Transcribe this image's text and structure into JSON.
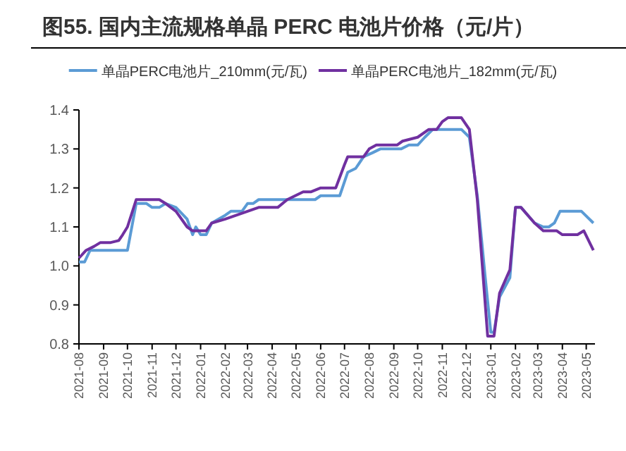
{
  "chart_data": {
    "type": "line",
    "title": "图55. 国内主流规格单晶 PERC 电池片价格（元/片）",
    "legend": "top",
    "xlim": [
      "2021-08-01",
      "2023-05-12"
    ],
    "xticks": [
      "2021-08",
      "2021-09",
      "2021-10",
      "2021-11",
      "2021-12",
      "2022-01",
      "2022-02",
      "2022-03",
      "2022-04",
      "2022-05",
      "2022-06",
      "2022-07",
      "2022-08",
      "2022-09",
      "2022-10",
      "2022-11",
      "2022-12",
      "2023-01",
      "2023-02",
      "2023-03",
      "2023-04",
      "2023-05"
    ],
    "ylim": [
      0.8,
      1.4
    ],
    "yticks": [
      0.8,
      0.9,
      {
        "value": 1.0,
        "label": "1.0"
      },
      1.1,
      1.2,
      1.3,
      1.4
    ],
    "series": [
      {
        "name": "单晶PERC电池片_210mm(元/瓦)",
        "color": "#5b9bd5",
        "x": [
          "2021-08-01",
          "2021-08-08",
          "2021-08-15",
          "2021-10-01",
          "2021-10-12",
          "2021-10-25",
          "2021-11-01",
          "2021-11-10",
          "2021-11-18",
          "2021-12-01",
          "2021-12-15",
          "2021-12-22",
          "2021-12-26",
          "2022-01-01",
          "2022-01-08",
          "2022-01-15",
          "2022-02-01",
          "2022-02-08",
          "2022-02-22",
          "2022-03-01",
          "2022-03-08",
          "2022-03-15",
          "2022-05-25",
          "2022-06-01",
          "2022-06-25",
          "2022-07-05",
          "2022-07-15",
          "2022-07-25",
          "2022-08-05",
          "2022-08-15",
          "2022-09-10",
          "2022-09-20",
          "2022-10-01",
          "2022-10-10",
          "2022-10-20",
          "2022-11-25",
          "2022-12-05",
          "2022-12-15",
          "2022-12-25",
          "2023-01-01",
          "2023-01-05",
          "2023-01-12",
          "2023-01-25",
          "2023-02-01",
          "2023-02-08",
          "2023-02-25",
          "2023-03-08",
          "2023-03-15",
          "2023-03-22",
          "2023-03-29",
          "2023-04-25",
          "2023-05-10"
        ],
        "values": [
          1.01,
          1.01,
          1.04,
          1.04,
          1.16,
          1.16,
          1.15,
          1.15,
          1.16,
          1.15,
          1.12,
          1.08,
          1.1,
          1.08,
          1.08,
          1.11,
          1.13,
          1.14,
          1.14,
          1.16,
          1.16,
          1.17,
          1.17,
          1.18,
          1.18,
          1.24,
          1.25,
          1.28,
          1.29,
          1.3,
          1.3,
          1.31,
          1.31,
          1.33,
          1.35,
          1.35,
          1.33,
          1.18,
          0.97,
          0.83,
          0.83,
          0.92,
          0.97,
          1.15,
          1.15,
          1.11,
          1.1,
          1.1,
          1.11,
          1.14,
          1.14,
          1.11
        ]
      },
      {
        "name": "单晶PERC电池片_182mm(元/瓦)",
        "color": "#7030a0",
        "x": [
          "2021-08-01",
          "2021-08-10",
          "2021-08-20",
          "2021-08-28",
          "2021-09-10",
          "2021-09-20",
          "2021-09-25",
          "2021-10-01",
          "2021-10-12",
          "2021-11-10",
          "2021-11-18",
          "2021-12-01",
          "2021-12-15",
          "2021-12-22",
          "2022-01-08",
          "2022-01-15",
          "2022-02-01",
          "2022-02-15",
          "2022-03-01",
          "2022-03-15",
          "2022-04-08",
          "2022-04-20",
          "2022-05-10",
          "2022-05-20",
          "2022-06-01",
          "2022-06-20",
          "2022-07-01",
          "2022-07-05",
          "2022-07-25",
          "2022-08-01",
          "2022-08-10",
          "2022-09-05",
          "2022-09-12",
          "2022-10-01",
          "2022-10-15",
          "2022-10-25",
          "2022-11-01",
          "2022-11-08",
          "2022-11-25",
          "2022-12-05",
          "2022-12-15",
          "2022-12-28",
          "2023-01-05",
          "2023-01-12",
          "2023-01-25",
          "2023-02-01",
          "2023-02-08",
          "2023-02-25",
          "2023-03-08",
          "2023-03-25",
          "2023-04-01",
          "2023-04-20",
          "2023-04-28",
          "2023-05-10"
        ],
        "values": [
          1.02,
          1.04,
          1.05,
          1.06,
          1.06,
          1.065,
          1.08,
          1.1,
          1.17,
          1.17,
          1.16,
          1.14,
          1.1,
          1.09,
          1.09,
          1.11,
          1.12,
          1.13,
          1.14,
          1.15,
          1.15,
          1.17,
          1.19,
          1.19,
          1.2,
          1.2,
          1.26,
          1.28,
          1.28,
          1.3,
          1.31,
          1.31,
          1.32,
          1.33,
          1.35,
          1.35,
          1.37,
          1.38,
          1.38,
          1.35,
          1.17,
          0.82,
          0.82,
          0.93,
          0.99,
          1.15,
          1.15,
          1.11,
          1.09,
          1.09,
          1.08,
          1.08,
          1.09,
          1.04
        ]
      }
    ]
  }
}
